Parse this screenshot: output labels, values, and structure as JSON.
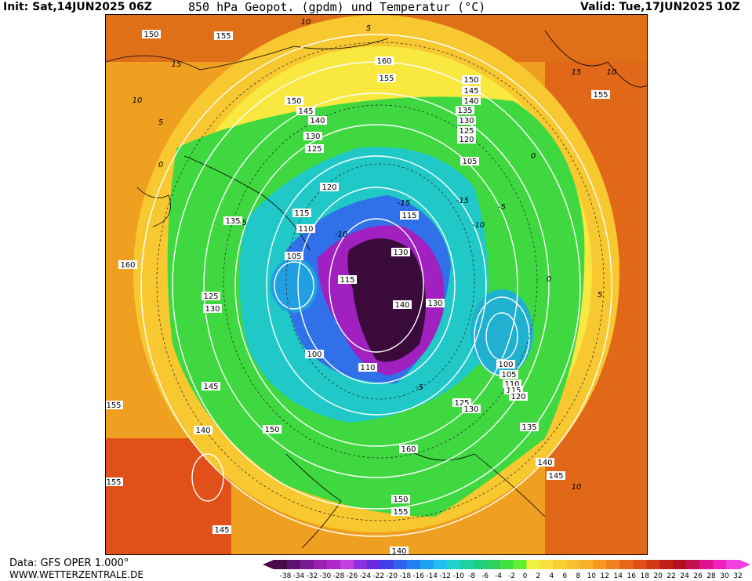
{
  "header": {
    "init": "Init: Sat,14JUN2025 06Z",
    "title": "850 hPa Geopot. (gpdm) und Temperatur (°C)",
    "valid": "Valid: Tue,17JUN2025 10Z"
  },
  "footer": {
    "data_source": "Data: GFS OPER 1.000°",
    "website": "WWW.WETTERZENTRALE.DE"
  },
  "legend": {
    "labels": [
      "-38",
      "-34",
      "-32",
      "-30",
      "-28",
      "-26",
      "-24",
      "-22",
      "-20",
      "-18",
      "-16",
      "-14",
      "-12",
      "-10",
      "-8",
      "-6",
      "-4",
      "-2",
      "0",
      "2",
      "4",
      "6",
      "8",
      "10",
      "12",
      "14",
      "16",
      "18",
      "20",
      "22",
      "24",
      "26",
      "28",
      "30",
      "32"
    ],
    "colors": [
      "#4a0a4a",
      "#5e1070",
      "#7a1a90",
      "#9a20b0",
      "#b028c8",
      "#c040e0",
      "#8a30e0",
      "#6a28e0",
      "#4040e8",
      "#3060f0",
      "#2080f0",
      "#20a0f0",
      "#20c0f0",
      "#20d0d0",
      "#20d0a0",
      "#20d080",
      "#30d060",
      "#40e040",
      "#60f030",
      "#f0f040",
      "#f8e040",
      "#f8d030",
      "#f8c030",
      "#f8b028",
      "#f89820",
      "#f08020",
      "#e86818",
      "#e05018",
      "#d03818",
      "#c02018",
      "#b01020",
      "#c01050",
      "#e01090",
      "#f020c0",
      "#f040e0"
    ]
  },
  "map": {
    "height_labels": [
      "150",
      "155",
      "160",
      "155",
      "150",
      "145",
      "140",
      "135",
      "130",
      "125",
      "120",
      "105",
      "155",
      "150",
      "145",
      "140",
      "130",
      "125",
      "120",
      "115",
      "110",
      "105",
      "115",
      "130",
      "115",
      "140",
      "130",
      "160",
      "135",
      "125",
      "130",
      "100",
      "110",
      "100",
      "105",
      "110",
      "115",
      "120",
      "125",
      "130",
      "145",
      "140",
      "150",
      "135",
      "140",
      "145",
      "150",
      "155",
      "140",
      "160",
      "155",
      "145",
      "155"
    ],
    "temperature_labels": [
      "10",
      "5",
      "0",
      "-5",
      "-10",
      "-15",
      "15",
      "10",
      "5",
      "0",
      "-5",
      "-10",
      "-15",
      "15",
      "10",
      "5",
      "0",
      "-5",
      "10"
    ]
  }
}
